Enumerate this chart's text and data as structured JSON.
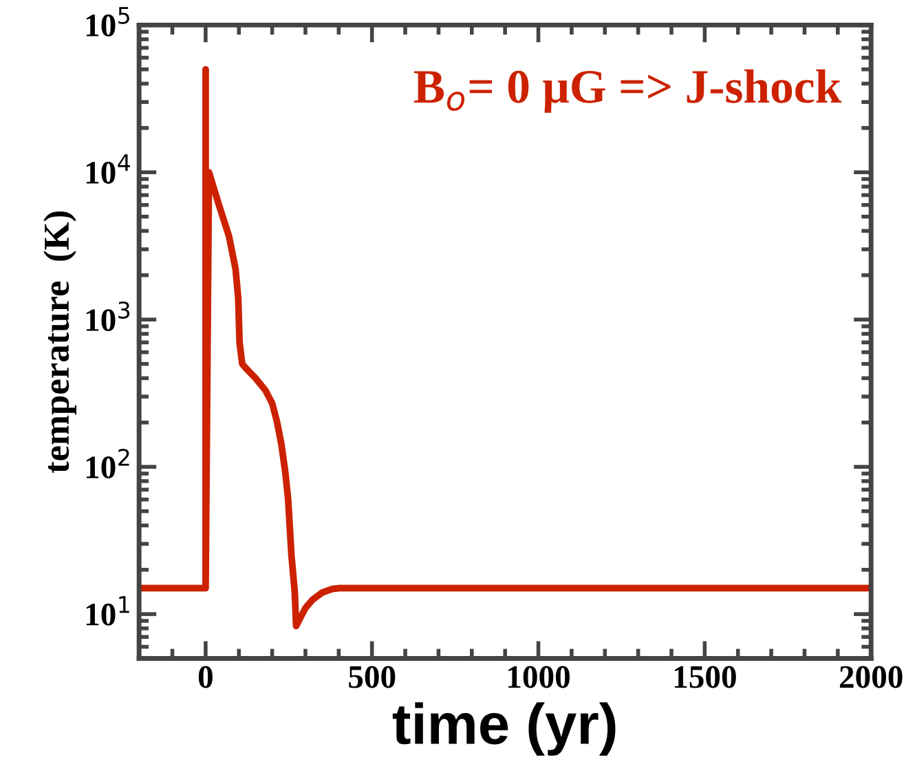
{
  "chart_data": {
    "type": "line",
    "xlabel": "time (yr)",
    "ylabel": "temperature  (K)",
    "annotations": [
      "B$_{o}$= 0 μG => J-shock"
    ],
    "log": "y",
    "xlim": [
      -200,
      2000
    ],
    "ylim": [
      5,
      100000
    ],
    "xticks": [
      0,
      500,
      1000,
      1500,
      2000
    ],
    "yticks": [
      {
        "value": 10,
        "label": "10$^{1}$"
      },
      {
        "value": 100,
        "label": "10$^{2}$"
      },
      {
        "value": 1000,
        "label": "10$^{3}$"
      },
      {
        "value": 10000,
        "label": "10$^{4}$"
      },
      {
        "value": 100000,
        "label": "10$^{5}$"
      }
    ],
    "grid": false,
    "legend": false,
    "marker": "none",
    "line_style": "solid",
    "series": [
      {
        "color": "#cc2200",
        "x": [
          -200,
          0,
          0,
          0,
          10,
          40,
          70,
          90,
          98,
          102,
          110,
          120,
          150,
          180,
          200,
          215,
          228,
          240,
          248,
          258,
          268,
          272,
          280,
          300,
          321,
          350,
          380,
          402,
          450,
          1000,
          2000
        ],
        "values": [
          15,
          15,
          50000,
          15,
          10000,
          6000,
          3700,
          2200,
          1400,
          700,
          500,
          470,
          400,
          330,
          270,
          200,
          141,
          90,
          60,
          25,
          14,
          8.3,
          9,
          11,
          12.5,
          14,
          14.8,
          15,
          15,
          15,
          15
        ]
      }
    ]
  }
}
